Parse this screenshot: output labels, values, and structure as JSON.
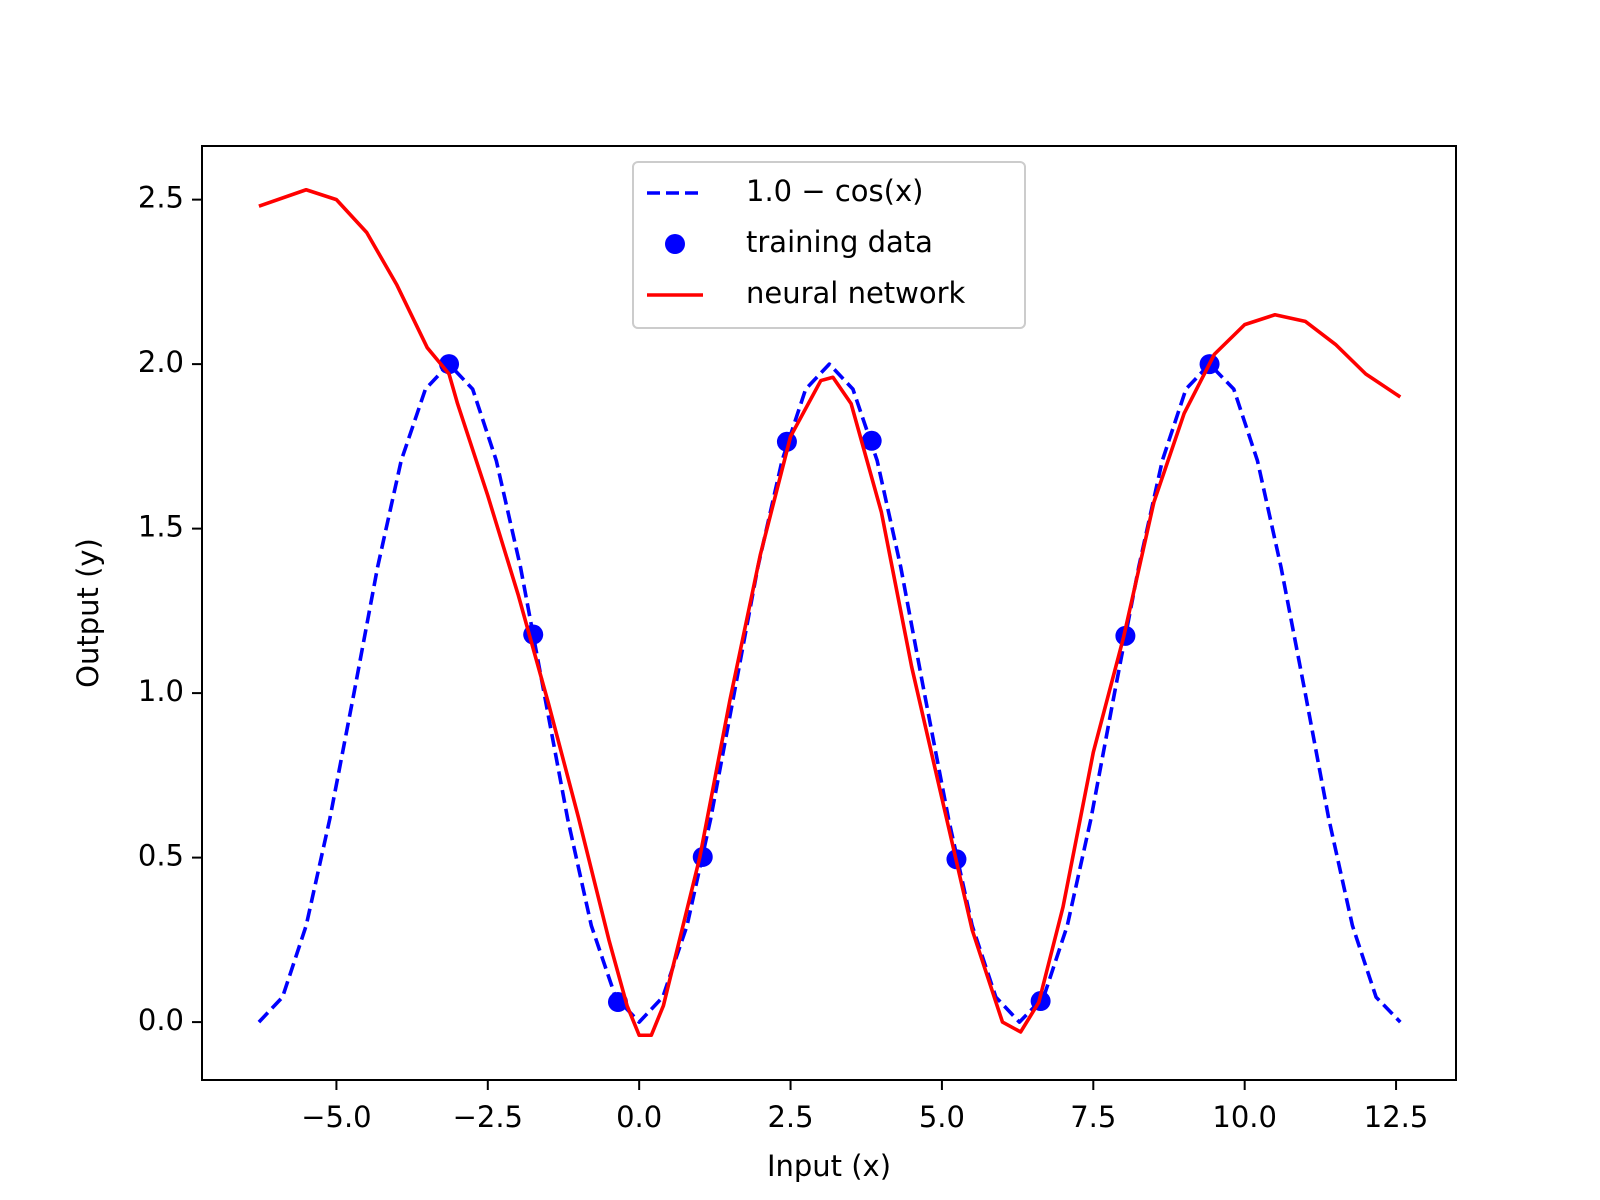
{
  "chart_data": {
    "type": "line",
    "xlabel": "Input (x)",
    "ylabel": "Output (y)",
    "xlim": [
      -7.22,
      13.49
    ],
    "ylim": [
      -0.176,
      2.663
    ],
    "xticks": [
      {
        "value": -5,
        "label": "−5.0"
      },
      {
        "value": -2.5,
        "label": "−2.5"
      },
      {
        "value": 0,
        "label": "0.0"
      },
      2.5,
      {
        "value": 5,
        "label": "5.0"
      },
      7.5,
      {
        "value": 10,
        "label": "10.0"
      },
      12.5
    ],
    "yticks": [
      {
        "value": 0,
        "label": "0.0"
      },
      0.5,
      {
        "value": 1,
        "label": "1.0"
      },
      1.5,
      {
        "value": 2,
        "label": "2.0"
      },
      2.5
    ],
    "grid": false,
    "legend": "upper center",
    "series": [
      {
        "name": "1.0 − cos(x)",
        "color": "#0000ff",
        "linestyle": "dashed",
        "marker": "none",
        "x": [
          -6.28,
          -5.89,
          -5.5,
          -5.11,
          -4.71,
          -4.32,
          -3.93,
          -3.53,
          -3.14,
          -2.75,
          -2.36,
          -1.96,
          -1.57,
          -1.18,
          -0.79,
          -0.39,
          0,
          0.39,
          0.79,
          1.18,
          1.57,
          1.96,
          2.36,
          2.75,
          3.14,
          3.53,
          3.93,
          4.32,
          4.71,
          5.11,
          5.5,
          5.89,
          6.28,
          6.68,
          7.07,
          7.46,
          7.85,
          8.25,
          8.64,
          9.03,
          9.42,
          9.82,
          10.21,
          10.6,
          11.0,
          11.39,
          11.78,
          12.17,
          12.57
        ],
        "values": [
          0,
          0.076,
          0.293,
          0.617,
          1,
          1.383,
          1.707,
          1.924,
          2,
          1.924,
          1.707,
          1.383,
          1,
          0.617,
          0.293,
          0.076,
          0,
          0.076,
          0.293,
          0.617,
          1,
          1.383,
          1.707,
          1.924,
          2,
          1.924,
          1.707,
          1.383,
          1,
          0.617,
          0.293,
          0.076,
          0,
          0.076,
          0.293,
          0.617,
          1,
          1.383,
          1.707,
          1.924,
          2,
          1.924,
          1.707,
          1.383,
          1,
          0.617,
          0.293,
          0.076,
          0
        ]
      },
      {
        "name": "training data",
        "color": "#0000ff",
        "linestyle": "none",
        "marker": "o",
        "x": [
          -3.14,
          -1.75,
          -0.35,
          1.05,
          2.44,
          3.84,
          5.24,
          6.63,
          8.03,
          9.42
        ],
        "values": [
          2.0,
          1.178,
          0.061,
          0.502,
          1.764,
          1.767,
          0.495,
          0.064,
          1.174,
          2.0
        ]
      },
      {
        "name": "neural network",
        "color": "#ff0000",
        "linestyle": "solid",
        "marker": "none",
        "x": [
          -6.28,
          -5.5,
          -5.0,
          -4.5,
          -4.0,
          -3.5,
          -3.14,
          -3.0,
          -2.5,
          -2.0,
          -1.5,
          -1.0,
          -0.5,
          -0.2,
          0.0,
          0.2,
          0.4,
          0.8,
          1.0,
          1.5,
          2.0,
          2.5,
          3.0,
          3.2,
          3.5,
          4.0,
          4.5,
          5.0,
          5.5,
          6.0,
          6.3,
          6.6,
          7.0,
          7.5,
          8.0,
          8.5,
          9.0,
          9.5,
          10.0,
          10.5,
          11.0,
          11.5,
          12.0,
          12.57
        ],
        "values": [
          2.48,
          2.53,
          2.5,
          2.4,
          2.24,
          2.05,
          1.97,
          1.88,
          1.6,
          1.3,
          0.97,
          0.62,
          0.25,
          0.05,
          -0.04,
          -0.04,
          0.05,
          0.35,
          0.5,
          0.98,
          1.42,
          1.78,
          1.95,
          1.96,
          1.88,
          1.55,
          1.08,
          0.68,
          0.28,
          0.0,
          -0.03,
          0.06,
          0.35,
          0.82,
          1.17,
          1.58,
          1.85,
          2.03,
          2.12,
          2.15,
          2.13,
          2.06,
          1.97,
          1.9
        ]
      }
    ]
  }
}
